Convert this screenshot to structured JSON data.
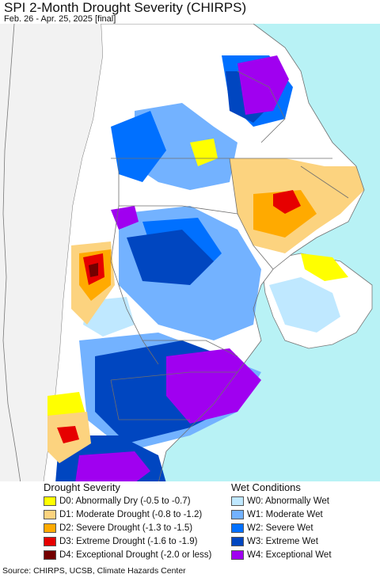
{
  "header": {
    "title": "SPI 2-Month Drought Severity (CHIRPS)",
    "subtitle": "Feb. 26 - Apr. 25, 2025 [final]"
  },
  "map": {
    "ocean_color": "#b8f2f5",
    "land_color": "#f2f2f2",
    "region_background": "#ffffff",
    "border_color": "#6f6f6f"
  },
  "legend": {
    "drought": {
      "title": "Drought Severity",
      "items": [
        {
          "label": "D0: Abnormally Dry (-0.5 to -0.7)",
          "color": "#ffff00"
        },
        {
          "label": "D1: Moderate Drought (-0.8 to -1.2)",
          "color": "#fcd37f"
        },
        {
          "label": "D2: Severe Drought (-1.3 to -1.5)",
          "color": "#ffaa00"
        },
        {
          "label": "D3: Extreme Drought (-1.6 to -1.9)",
          "color": "#e60000"
        },
        {
          "label": "D4: Exceptional Drought (-2.0 or less)",
          "color": "#730000"
        }
      ]
    },
    "wet": {
      "title": "Wet Conditions",
      "items": [
        {
          "label": "W0: Abnormally Wet",
          "color": "#bfe8ff"
        },
        {
          "label": "W1: Moderate Wet",
          "color": "#73b2ff"
        },
        {
          "label": "W2: Severe Wet",
          "color": "#0070ff"
        },
        {
          "label": "W3: Extreme Wet",
          "color": "#0046c0"
        },
        {
          "label": "W4: Exceptional Wet",
          "color": "#a000f0"
        }
      ]
    }
  },
  "footer": {
    "source": "Source: CHIRPS, UCSB, Climate Hazards Center"
  }
}
